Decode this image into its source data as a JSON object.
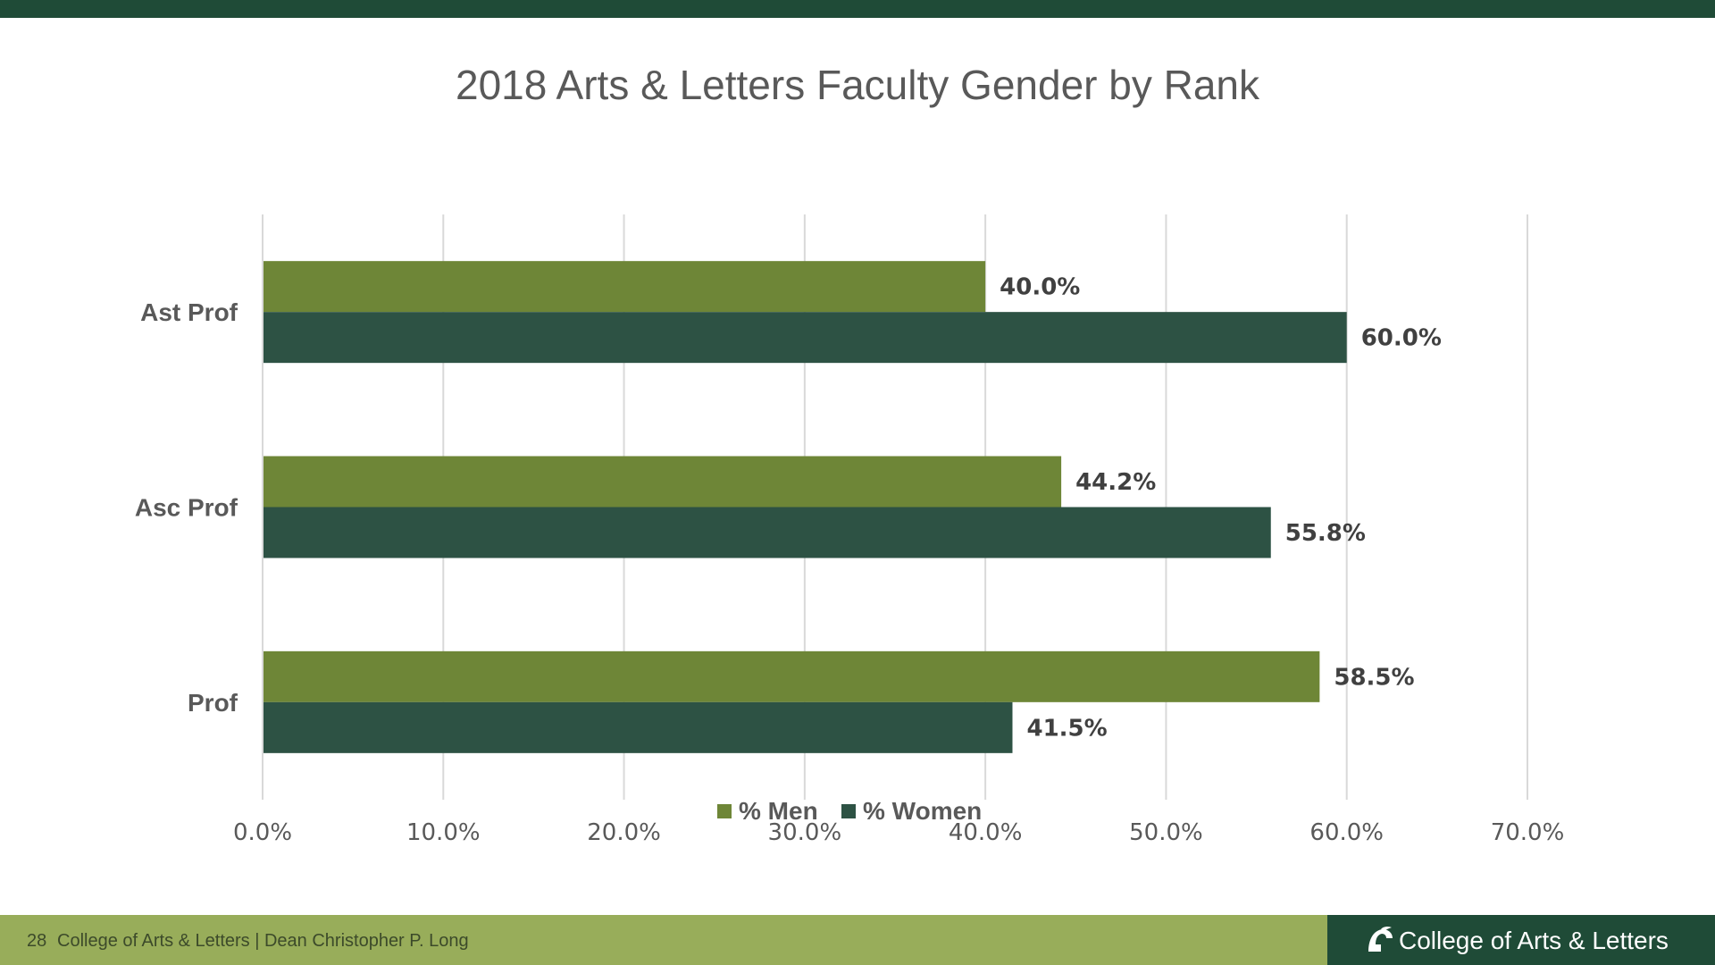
{
  "footer": {
    "page_number": "28",
    "text": "College of Arts & Letters | Dean Christopher P. Long",
    "college_name": "College of Arts & Letters"
  },
  "colors": {
    "men": "#6e8637",
    "women": "#2d5244",
    "grid": "#d9d9d9",
    "label": "#404040",
    "tick": "#595959"
  },
  "chart_data": {
    "type": "bar",
    "orientation": "horizontal",
    "title": "2018 Arts & Letters Faculty Gender by Rank",
    "categories": [
      "Ast Prof",
      "Asc Prof",
      "Prof"
    ],
    "series": [
      {
        "name": "% Men",
        "values": [
          40.0,
          44.2,
          58.5
        ],
        "labels": [
          "40.0%",
          "44.2%",
          "58.5%"
        ]
      },
      {
        "name": "% Women",
        "values": [
          60.0,
          55.8,
          41.5
        ],
        "labels": [
          "60.0%",
          "55.8%",
          "41.5%"
        ]
      }
    ],
    "xlim": [
      0,
      70
    ],
    "x_ticks": [
      "0.0%",
      "10.0%",
      "20.0%",
      "30.0%",
      "40.0%",
      "50.0%",
      "60.0%",
      "70.0%"
    ],
    "grid": true,
    "legend": "bottom"
  }
}
